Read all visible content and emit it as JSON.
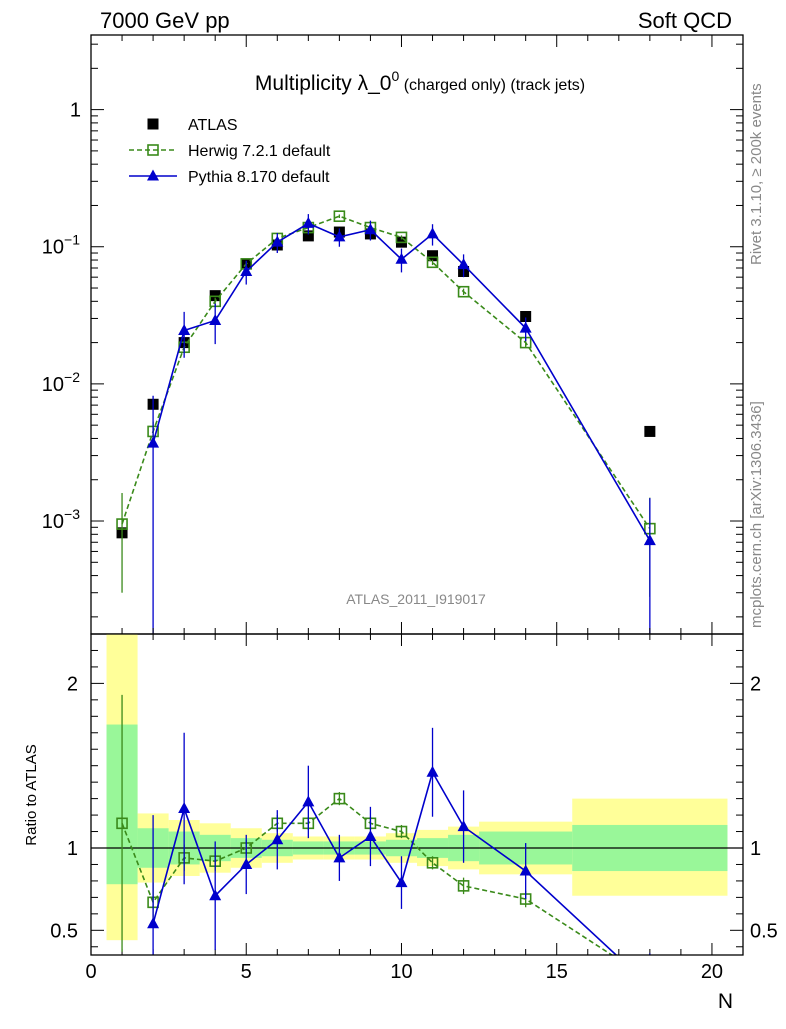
{
  "header": {
    "left": "7000 GeV pp",
    "right": "Soft QCD"
  },
  "side": {
    "top": "Rivet 3.1.10, ≥ 200k events",
    "bottom": "mcplots.cern.ch [arXiv:1306.3436]"
  },
  "watermark": "ATLAS_2011_I919017",
  "chart_data": {
    "type": "scatter",
    "title": "Multiplicity λ_0",
    "title_sup": "0",
    "title_suffix": " (charged only) (track jets)",
    "xlabel": "N",
    "xlim": [
      0,
      21
    ],
    "x_ticks": [
      "0",
      "5",
      "10",
      "15",
      "20"
    ],
    "main": {
      "yscale": "log",
      "ylim": [
        0.00015,
        3.5
      ],
      "y_ticks": [
        {
          "value": 1,
          "label": "1"
        },
        {
          "value": 0.1,
          "label": "10",
          "sup": "−1"
        },
        {
          "value": 0.01,
          "label": "10",
          "sup": "−2"
        },
        {
          "value": 0.001,
          "label": "10",
          "sup": "−3"
        }
      ]
    },
    "ratio": {
      "ylabel": "Ratio to ATLAS",
      "ylim": [
        0.35,
        2.3
      ],
      "y_ticks": [
        {
          "value": 0.5,
          "label": "0.5"
        },
        {
          "value": 1,
          "label": "1"
        },
        {
          "value": 2,
          "label": "2"
        }
      ],
      "band_x": [
        [
          0.5,
          1.5
        ],
        [
          1.5,
          2.5
        ],
        [
          2.5,
          3.5
        ],
        [
          3.5,
          4.5
        ],
        [
          4.5,
          5.5
        ],
        [
          5.5,
          6.5
        ],
        [
          6.5,
          7.5
        ],
        [
          7.5,
          8.5
        ],
        [
          8.5,
          9.5
        ],
        [
          9.5,
          10.5
        ],
        [
          10.5,
          11.5
        ],
        [
          11.5,
          12.5
        ],
        [
          12.5,
          15.5
        ],
        [
          15.5,
          20.5
        ]
      ],
      "band_green": [
        [
          0.78,
          1.75
        ],
        [
          0.88,
          1.12
        ],
        [
          0.9,
          1.1
        ],
        [
          0.92,
          1.08
        ],
        [
          0.94,
          1.06
        ],
        [
          0.95,
          1.05
        ],
        [
          0.96,
          1.04
        ],
        [
          0.96,
          1.04
        ],
        [
          0.96,
          1.04
        ],
        [
          0.95,
          1.05
        ],
        [
          0.94,
          1.06
        ],
        [
          0.92,
          1.08
        ],
        [
          0.9,
          1.1
        ],
        [
          0.86,
          1.14
        ]
      ],
      "band_yellow": [
        [
          0.44,
          2.3
        ],
        [
          0.79,
          1.21
        ],
        [
          0.83,
          1.17
        ],
        [
          0.85,
          1.15
        ],
        [
          0.88,
          1.12
        ],
        [
          0.91,
          1.09
        ],
        [
          0.93,
          1.07
        ],
        [
          0.93,
          1.07
        ],
        [
          0.93,
          1.07
        ],
        [
          0.91,
          1.09
        ],
        [
          0.89,
          1.11
        ],
        [
          0.87,
          1.13
        ],
        [
          0.84,
          1.16
        ],
        [
          0.71,
          1.3
        ]
      ]
    },
    "series": [
      {
        "name": "ATLAS",
        "color": "#000000",
        "marker": "square-filled",
        "x": [
          1,
          2,
          3,
          4,
          5,
          6,
          7,
          8,
          9,
          10,
          11,
          12,
          14,
          18
        ],
        "y": [
          0.00082,
          0.0071,
          0.02,
          0.044,
          0.075,
          0.103,
          0.12,
          0.128,
          0.124,
          0.108,
          0.086,
          0.066,
          0.031,
          0.0045
        ]
      },
      {
        "name": "Herwig 7.2.1 default",
        "color": "#3a8a1a",
        "marker": "square-open",
        "line": "dashed",
        "x": [
          1,
          2,
          3,
          4,
          5,
          6,
          7,
          8,
          9,
          10,
          11,
          12,
          14,
          18
        ],
        "y": [
          0.00095,
          0.0045,
          0.0185,
          0.04,
          0.075,
          0.115,
          0.138,
          0.167,
          0.138,
          0.117,
          0.077,
          0.047,
          0.02,
          0.00088
        ],
        "yerr": [
          0.00065,
          0.0008,
          0.0015,
          0.0025,
          0.0035,
          0.004,
          0.004,
          0.005,
          0.004,
          0.004,
          0.0035,
          0.0025,
          0.0015,
          0.0006
        ],
        "ratio": [
          1.15,
          0.67,
          0.94,
          0.92,
          1.0,
          1.15,
          1.15,
          1.3,
          1.15,
          1.1,
          0.91,
          0.77,
          0.69,
          0.2
        ],
        "ratio_err": [
          0.78,
          0.12,
          0.08,
          0.06,
          0.05,
          0.05,
          0.04,
          0.04,
          0.04,
          0.04,
          0.04,
          0.05,
          0.05,
          0.15
        ]
      },
      {
        "name": "Pythia 8.170 default",
        "color": "#0000cc",
        "marker": "triangle-filled",
        "line": "solid",
        "x": [
          1,
          2,
          3,
          4,
          5,
          6,
          7,
          8,
          9,
          10,
          11,
          12,
          14,
          18
        ],
        "y": [
          null,
          0.0037,
          0.0245,
          0.029,
          0.066,
          0.108,
          0.148,
          0.118,
          0.133,
          0.081,
          0.124,
          0.074,
          0.0255,
          0.00072
        ],
        "yerr": [
          null,
          0.0045,
          0.009,
          0.0095,
          0.013,
          0.018,
          0.025,
          0.018,
          0.022,
          0.016,
          0.022,
          0.014,
          0.005,
          0.00075
        ],
        "ratio": [
          null,
          0.54,
          1.24,
          0.71,
          0.9,
          1.05,
          1.28,
          0.94,
          1.07,
          0.79,
          1.46,
          1.13,
          0.86,
          0.16
        ],
        "ratio_err": [
          null,
          0.66,
          0.46,
          0.33,
          0.18,
          0.18,
          0.22,
          0.14,
          0.18,
          0.16,
          0.27,
          0.22,
          0.17,
          0.2
        ]
      }
    ]
  }
}
